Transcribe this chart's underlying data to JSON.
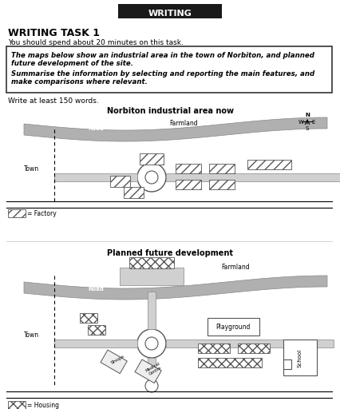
{
  "title_box_text": "WRITING",
  "heading": "WRITING TASK 1",
  "subheading": "You should spend about 20 minutes on this task.",
  "task_box_text_line1": "The maps below show an industrial area in the town of Norbiton, and planned",
  "task_box_text_line2": "future development of the site.",
  "task_box_text_line3": "Summarise the information by selecting and reporting the main features, and",
  "task_box_text_line4": "make comparisons where relevant.",
  "write_instruction": "Write at least 150 words.",
  "map1_title": "Norbiton industrial area now",
  "map2_title": "Planned future development",
  "legend1_label": "= Factory",
  "legend2_label": "= Housing",
  "bg_color": "#ffffff",
  "hatch_color": "#888888",
  "road_color": "#aaaaaa",
  "border_color": "#333333"
}
